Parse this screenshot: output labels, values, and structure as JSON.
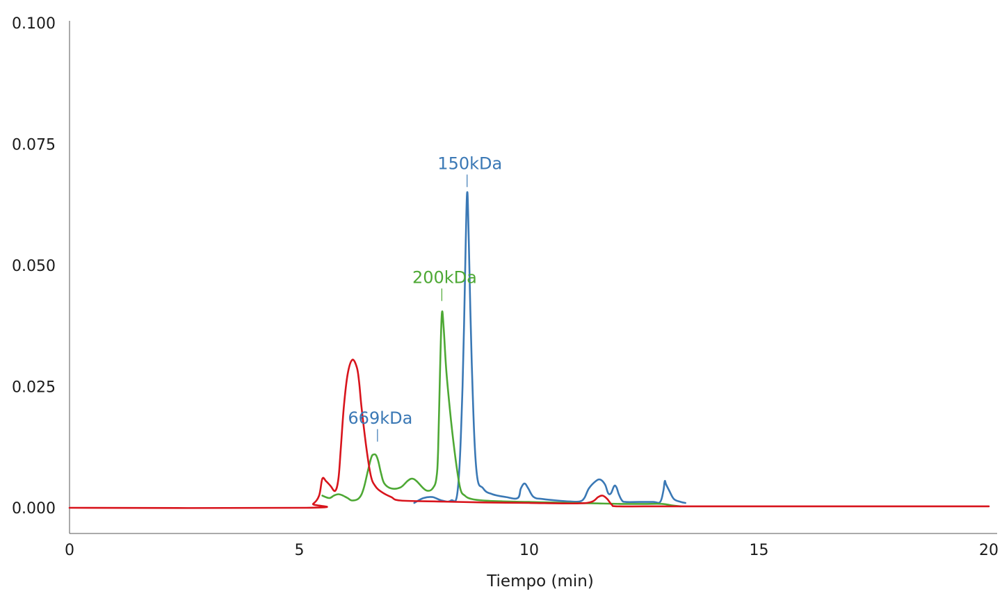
{
  "chart_data": {
    "type": "line",
    "title": "",
    "xlabel": "Tiempo (min)",
    "ylabel": "",
    "xlim": [
      0,
      20
    ],
    "ylim": [
      0,
      0.1
    ],
    "x_ticks": [
      0,
      5,
      10,
      15,
      20
    ],
    "x_tick_labels": [
      "0",
      "5",
      "10",
      "15",
      "20"
    ],
    "y_ticks": [
      0,
      0.025,
      0.05,
      0.075,
      0.1
    ],
    "y_tick_labels": [
      "0.000",
      "0.025",
      "0.050",
      "0.075",
      "0.100"
    ],
    "grid": false,
    "legend": "none",
    "series": [
      {
        "color": "#3a78b5",
        "x": [
          7.5,
          7.7,
          7.9,
          8.1,
          8.3,
          8.45,
          8.55,
          8.62,
          8.65,
          8.68,
          8.75,
          8.85,
          9.0,
          9.2,
          9.5,
          9.75,
          9.82,
          9.9,
          9.98,
          10.1,
          10.3,
          10.6,
          10.9,
          11.1,
          11.2,
          11.3,
          11.45,
          11.55,
          11.65,
          11.72,
          11.78,
          11.85,
          11.9,
          11.95,
          12.02,
          12.1,
          12.4,
          12.7,
          12.85,
          12.92,
          12.95,
          12.98,
          13.05,
          13.15,
          13.3,
          13.4
        ],
        "y": [
          0.001,
          0.002,
          0.0022,
          0.0015,
          0.0015,
          0.004,
          0.025,
          0.055,
          0.065,
          0.058,
          0.03,
          0.008,
          0.004,
          0.0028,
          0.0022,
          0.002,
          0.004,
          0.005,
          0.004,
          0.0022,
          0.0018,
          0.0015,
          0.0013,
          0.0013,
          0.002,
          0.004,
          0.0055,
          0.0058,
          0.0048,
          0.003,
          0.003,
          0.0045,
          0.0042,
          0.0028,
          0.0015,
          0.0012,
          0.0012,
          0.0012,
          0.0012,
          0.0035,
          0.0055,
          0.0048,
          0.0035,
          0.0018,
          0.0012,
          0.001
        ]
      },
      {
        "color": "#4da834",
        "x": [
          5.5,
          5.65,
          5.75,
          5.85,
          5.95,
          6.05,
          6.15,
          6.3,
          6.4,
          6.5,
          6.57,
          6.62,
          6.67,
          6.72,
          6.78,
          6.85,
          7.0,
          7.2,
          7.35,
          7.45,
          7.55,
          7.7,
          7.8,
          7.9,
          7.98,
          8.02,
          8.06,
          8.1,
          8.14,
          8.2,
          8.3,
          8.4,
          8.5,
          8.6,
          8.75,
          9.0,
          9.5,
          10.0,
          10.5,
          11.0,
          11.5,
          12.0,
          12.5,
          12.9,
          13.1,
          13.3
        ],
        "y": [
          0.0025,
          0.002,
          0.0025,
          0.0028,
          0.0025,
          0.002,
          0.0015,
          0.002,
          0.004,
          0.008,
          0.0105,
          0.011,
          0.0108,
          0.0095,
          0.007,
          0.005,
          0.004,
          0.0042,
          0.0055,
          0.006,
          0.0055,
          0.004,
          0.0035,
          0.004,
          0.006,
          0.012,
          0.028,
          0.04,
          0.037,
          0.028,
          0.018,
          0.01,
          0.004,
          0.0025,
          0.0018,
          0.0015,
          0.0013,
          0.0012,
          0.0011,
          0.001,
          0.0009,
          0.0008,
          0.0008,
          0.0008,
          0.0005,
          0.0003
        ]
      },
      {
        "color": "#d8141c",
        "x": [
          0,
          5.15,
          5.3,
          5.43,
          5.5,
          5.58,
          5.68,
          5.78,
          5.85,
          5.9,
          5.97,
          6.05,
          6.15,
          6.25,
          6.3,
          6.35,
          6.45,
          6.55,
          6.65,
          6.8,
          7.0,
          7.2,
          8.0,
          9.0,
          10.0,
          11.0,
          11.35,
          11.5,
          11.6,
          11.7,
          11.8,
          11.9,
          12.5,
          14.0,
          16.0,
          18.0,
          20.0
        ],
        "y": [
          0,
          0,
          0.0008,
          0.0025,
          0.006,
          0.0055,
          0.0045,
          0.0035,
          0.006,
          0.012,
          0.021,
          0.0275,
          0.0305,
          0.029,
          0.026,
          0.021,
          0.013,
          0.0068,
          0.0045,
          0.0032,
          0.0022,
          0.0015,
          0.0013,
          0.0011,
          0.001,
          0.0009,
          0.0012,
          0.0022,
          0.0025,
          0.0018,
          0.0006,
          0.0003,
          0.0003,
          0.0003,
          0.0003,
          0.0003,
          0.0003
        ]
      }
    ],
    "annotations": [
      {
        "text": "669kDa",
        "x": 6.7,
        "y": 0.0125,
        "color": "#3a78b5"
      },
      {
        "text": "200kDa",
        "x": 8.1,
        "y": 0.0415,
        "color": "#4da834"
      },
      {
        "text": "150kDa",
        "x": 8.65,
        "y": 0.065,
        "color": "#3a78b5"
      }
    ]
  }
}
